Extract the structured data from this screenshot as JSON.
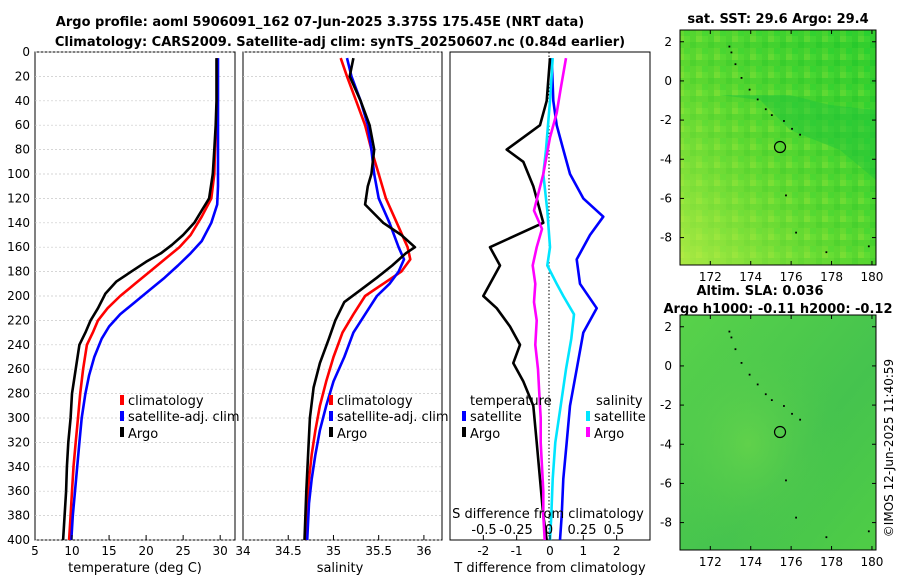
{
  "title": {
    "line1": "Argo profile: aoml 5906091_162 07-Jun-2025 3.375S 175.45E (NRT data)",
    "line2": "Climatology: CARS2009. Satellite-adj clim: synTS_20250607.nc (0.84d earlier)"
  },
  "credit": "©IMOS 12-Jun-2025 11:40:59",
  "colors": {
    "climatology": "#ff0000",
    "satellite": "#0000ff",
    "argo": "#000000",
    "temp_diff_sat": "#0000ff",
    "sal_diff_argo": "#ff00ff",
    "sal_diff_sat": "#00e5ff"
  },
  "chart_data": [
    {
      "type": "line",
      "id": "temperature",
      "xlabel": "temperature (deg C)",
      "ylabel": "",
      "xlim": [
        5,
        32
      ],
      "ylim": [
        400,
        0
      ],
      "xticks": [
        5,
        10,
        15,
        20,
        25,
        30
      ],
      "yticks": [
        0,
        20,
        40,
        60,
        80,
        100,
        120,
        140,
        160,
        180,
        200,
        220,
        240,
        260,
        280,
        300,
        320,
        340,
        360,
        380,
        400
      ],
      "grid": true,
      "legend": {
        "placement": "lower-right",
        "entries": [
          "climatology",
          "satellite-adj. clim",
          "Argo"
        ]
      },
      "series": [
        {
          "name": "climatology",
          "color": "#ff0000",
          "points": [
            [
              29.6,
              5
            ],
            [
              29.6,
              40
            ],
            [
              29.5,
              60
            ],
            [
              29.3,
              80
            ],
            [
              29.2,
              100
            ],
            [
              28.8,
              120
            ],
            [
              27.5,
              135
            ],
            [
              26.0,
              150
            ],
            [
              24.5,
              160
            ],
            [
              22.5,
              170
            ],
            [
              20.5,
              180
            ],
            [
              18.5,
              190
            ],
            [
              16.5,
              200
            ],
            [
              14.8,
              210
            ],
            [
              13.5,
              220
            ],
            [
              12.8,
              230
            ],
            [
              12.0,
              240
            ],
            [
              11.5,
              260
            ],
            [
              11.1,
              280
            ],
            [
              10.8,
              300
            ],
            [
              10.5,
              320
            ],
            [
              10.2,
              340
            ],
            [
              10.0,
              360
            ],
            [
              9.8,
              380
            ],
            [
              9.6,
              400
            ]
          ]
        },
        {
          "name": "satellite-adj. clim",
          "color": "#0000ff",
          "points": [
            [
              29.7,
              5
            ],
            [
              29.7,
              40
            ],
            [
              29.7,
              80
            ],
            [
              29.7,
              110
            ],
            [
              29.6,
              125
            ],
            [
              28.8,
              140
            ],
            [
              27.5,
              155
            ],
            [
              26.0,
              165
            ],
            [
              24.3,
              175
            ],
            [
              22.5,
              185
            ],
            [
              20.5,
              195
            ],
            [
              18.5,
              205
            ],
            [
              16.5,
              215
            ],
            [
              15.0,
              225
            ],
            [
              14.0,
              235
            ],
            [
              13.0,
              250
            ],
            [
              12.3,
              265
            ],
            [
              11.8,
              280
            ],
            [
              11.3,
              300
            ],
            [
              11.0,
              320
            ],
            [
              10.7,
              340
            ],
            [
              10.4,
              360
            ],
            [
              10.1,
              380
            ],
            [
              9.9,
              400
            ]
          ]
        },
        {
          "name": "Argo",
          "color": "#000000",
          "points": [
            [
              29.5,
              5
            ],
            [
              29.5,
              40
            ],
            [
              29.4,
              60
            ],
            [
              29.2,
              80
            ],
            [
              29.0,
              100
            ],
            [
              28.5,
              120
            ],
            [
              27.5,
              130
            ],
            [
              26.5,
              140
            ],
            [
              25.0,
              150
            ],
            [
              23.5,
              158
            ],
            [
              22.0,
              165
            ],
            [
              20.0,
              172
            ],
            [
              18.0,
              180
            ],
            [
              16.0,
              188
            ],
            [
              14.5,
              198
            ],
            [
              13.5,
              210
            ],
            [
              12.5,
              220
            ],
            [
              11.8,
              230
            ],
            [
              11.0,
              240
            ],
            [
              10.5,
              260
            ],
            [
              10.0,
              280
            ],
            [
              9.8,
              300
            ],
            [
              9.5,
              320
            ],
            [
              9.3,
              340
            ],
            [
              9.2,
              360
            ],
            [
              9.0,
              380
            ],
            [
              8.8,
              400
            ]
          ]
        }
      ]
    },
    {
      "type": "line",
      "id": "salinity",
      "xlabel": "salinity",
      "ylabel": "",
      "xlim": [
        34,
        36.2
      ],
      "ylim": [
        400,
        0
      ],
      "xticks": [
        34,
        34.5,
        35,
        35.5,
        36
      ],
      "xtick_labels": [
        "34",
        "34.5",
        "35",
        "35.5",
        "36"
      ],
      "grid": true,
      "legend": {
        "placement": "lower-right",
        "entries": [
          "climatology",
          "satellite-adj. clim",
          "Argo"
        ]
      },
      "series": [
        {
          "name": "climatology",
          "color": "#ff0000",
          "points": [
            [
              35.08,
              5
            ],
            [
              35.15,
              20
            ],
            [
              35.25,
              40
            ],
            [
              35.35,
              60
            ],
            [
              35.42,
              80
            ],
            [
              35.5,
              100
            ],
            [
              35.58,
              120
            ],
            [
              35.7,
              140
            ],
            [
              35.82,
              160
            ],
            [
              35.85,
              170
            ],
            [
              35.75,
              180
            ],
            [
              35.55,
              190
            ],
            [
              35.35,
              200
            ],
            [
              35.22,
              215
            ],
            [
              35.1,
              230
            ],
            [
              35.0,
              250
            ],
            [
              34.92,
              270
            ],
            [
              34.85,
              290
            ],
            [
              34.8,
              310
            ],
            [
              34.76,
              330
            ],
            [
              34.73,
              350
            ],
            [
              34.71,
              370
            ],
            [
              34.69,
              400
            ]
          ]
        },
        {
          "name": "satellite-adj. clim",
          "color": "#0000ff",
          "points": [
            [
              35.15,
              5
            ],
            [
              35.2,
              20
            ],
            [
              35.3,
              40
            ],
            [
              35.38,
              60
            ],
            [
              35.42,
              80
            ],
            [
              35.45,
              100
            ],
            [
              35.5,
              120
            ],
            [
              35.62,
              140
            ],
            [
              35.72,
              160
            ],
            [
              35.78,
              170
            ],
            [
              35.72,
              180
            ],
            [
              35.62,
              190
            ],
            [
              35.48,
              200
            ],
            [
              35.35,
              215
            ],
            [
              35.22,
              230
            ],
            [
              35.12,
              250
            ],
            [
              35.0,
              270
            ],
            [
              34.92,
              290
            ],
            [
              34.85,
              310
            ],
            [
              34.8,
              330
            ],
            [
              34.76,
              350
            ],
            [
              34.73,
              370
            ],
            [
              34.71,
              400
            ]
          ]
        },
        {
          "name": "Argo",
          "color": "#000000",
          "points": [
            [
              35.22,
              5
            ],
            [
              35.18,
              20
            ],
            [
              35.3,
              40
            ],
            [
              35.4,
              60
            ],
            [
              35.45,
              80
            ],
            [
              35.42,
              100
            ],
            [
              35.38,
              110
            ],
            [
              35.35,
              125
            ],
            [
              35.55,
              140
            ],
            [
              35.75,
              150
            ],
            [
              35.9,
              160
            ],
            [
              35.8,
              165
            ],
            [
              35.65,
              175
            ],
            [
              35.48,
              185
            ],
            [
              35.3,
              195
            ],
            [
              35.12,
              205
            ],
            [
              35.02,
              220
            ],
            [
              34.95,
              235
            ],
            [
              34.85,
              255
            ],
            [
              34.78,
              275
            ],
            [
              34.74,
              300
            ],
            [
              34.72,
              330
            ],
            [
              34.7,
              360
            ],
            [
              34.68,
              400
            ]
          ]
        }
      ]
    },
    {
      "type": "line",
      "id": "difference",
      "xlabel": "T difference from climatology",
      "ylabel": "",
      "xlim": [
        -3,
        3
      ],
      "ylim": [
        400,
        0
      ],
      "xticks": [
        -2,
        -1,
        0,
        1,
        2
      ],
      "top_axis_label": "S difference from climatology",
      "top_axis_ticks": [
        "-0.5",
        "-0.25",
        "0",
        "0.25",
        "0.5"
      ],
      "grid": false,
      "legend": {
        "temperature_heading": "temperature",
        "salinity_heading": "salinity",
        "entries": [
          "satellite",
          "Argo",
          "satellite",
          "Argo"
        ]
      },
      "series": [
        {
          "name": "temperature satellite",
          "color": "#0000ff",
          "points": [
            [
              0.05,
              5
            ],
            [
              0.1,
              40
            ],
            [
              0.2,
              60
            ],
            [
              0.4,
              80
            ],
            [
              0.6,
              100
            ],
            [
              1.0,
              120
            ],
            [
              1.6,
              135
            ],
            [
              1.2,
              150
            ],
            [
              0.8,
              170
            ],
            [
              0.9,
              190
            ],
            [
              1.4,
              210
            ],
            [
              1.0,
              230
            ],
            [
              0.8,
              260
            ],
            [
              0.6,
              290
            ],
            [
              0.5,
              320
            ],
            [
              0.4,
              350
            ],
            [
              0.35,
              380
            ],
            [
              0.3,
              400
            ]
          ]
        },
        {
          "name": "temperature Argo",
          "color": "#000000",
          "points": [
            [
              0.0,
              5
            ],
            [
              -0.1,
              40
            ],
            [
              -0.3,
              60
            ],
            [
              -0.8,
              70
            ],
            [
              -1.3,
              80
            ],
            [
              -0.8,
              90
            ],
            [
              -0.5,
              110
            ],
            [
              -0.2,
              140
            ],
            [
              -1.8,
              160
            ],
            [
              -1.5,
              175
            ],
            [
              -2.0,
              200
            ],
            [
              -1.6,
              210
            ],
            [
              -1.2,
              225
            ],
            [
              -0.9,
              240
            ],
            [
              -1.1,
              255
            ],
            [
              -0.8,
              270
            ],
            [
              -0.5,
              290
            ],
            [
              -0.4,
              320
            ],
            [
              -0.3,
              350
            ],
            [
              -0.2,
              380
            ],
            [
              -0.1,
              400
            ]
          ]
        },
        {
          "name": "salinity satellite",
          "color": "#00e5ff",
          "points": [
            [
              0.02,
              5
            ],
            [
              0.0,
              40
            ],
            [
              -0.03,
              80
            ],
            [
              -0.05,
              100
            ],
            [
              -0.02,
              130
            ],
            [
              0.0,
              160
            ],
            [
              -0.02,
              175
            ],
            [
              0.05,
              190
            ],
            [
              0.1,
              200
            ],
            [
              0.18,
              215
            ],
            [
              0.16,
              235
            ],
            [
              0.12,
              260
            ],
            [
              0.08,
              290
            ],
            [
              0.04,
              320
            ],
            [
              0.02,
              350
            ],
            [
              0.01,
              380
            ],
            [
              0.0,
              400
            ]
          ]
        },
        {
          "name": "salinity Argo",
          "color": "#ff00ff",
          "points": [
            [
              0.12,
              5
            ],
            [
              0.08,
              30
            ],
            [
              0.05,
              50
            ],
            [
              0.0,
              70
            ],
            [
              -0.05,
              100
            ],
            [
              -0.12,
              130
            ],
            [
              -0.06,
              145
            ],
            [
              -0.1,
              160
            ],
            [
              -0.13,
              175
            ],
            [
              -0.11,
              190
            ],
            [
              -0.12,
              205
            ],
            [
              -0.1,
              220
            ],
            [
              -0.11,
              240
            ],
            [
              -0.09,
              260
            ],
            [
              -0.08,
              280
            ],
            [
              -0.07,
              300
            ],
            [
              -0.07,
              320
            ],
            [
              -0.06,
              340
            ],
            [
              -0.05,
              360
            ],
            [
              -0.05,
              380
            ],
            [
              -0.04,
              400
            ]
          ]
        }
      ]
    },
    {
      "type": "heatmap",
      "id": "sst-map",
      "title": "sat. SST: 29.6 Argo: 29.4",
      "xlim": [
        170.5,
        180.2
      ],
      "ylim": [
        -9.4,
        2.6
      ],
      "xticks": [
        172,
        174,
        176,
        178,
        180
      ],
      "yticks": [
        -8,
        -6,
        -4,
        -2,
        0,
        2
      ],
      "marker": [
        175.45,
        -3.375
      ]
    },
    {
      "type": "heatmap",
      "id": "sla-map",
      "title_line1": "Altim. SLA: 0.036",
      "title_line2": "Argo h1000: -0.11 h2000: -0.12",
      "xlim": [
        170.5,
        180.2
      ],
      "ylim": [
        -9.4,
        2.6
      ],
      "xticks": [
        172,
        174,
        176,
        178,
        180
      ],
      "yticks": [
        -8,
        -6,
        -4,
        -2,
        0,
        2
      ],
      "marker": [
        175.45,
        -3.375
      ]
    }
  ]
}
